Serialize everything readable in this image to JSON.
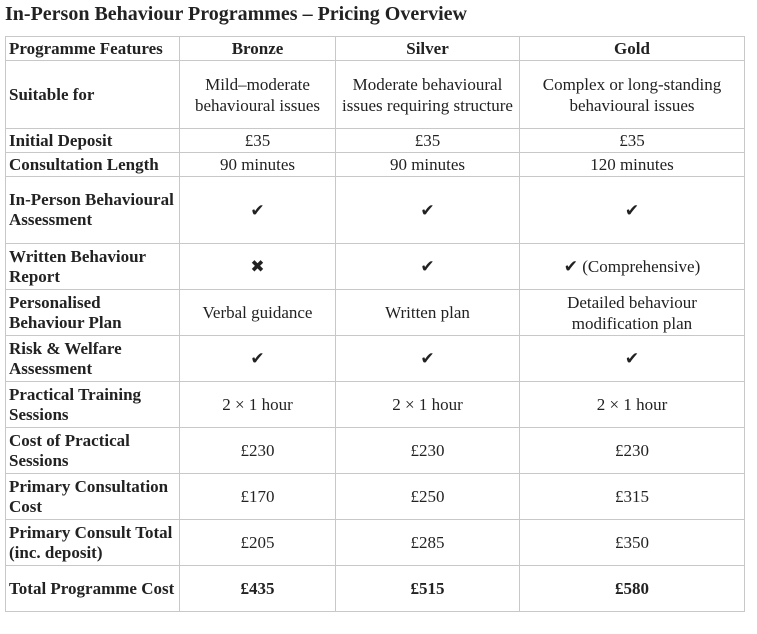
{
  "header": {
    "title": "In-Person Behaviour Programmes – Pricing Overview"
  },
  "table": {
    "columns": [
      "Programme Features",
      "Bronze",
      "Silver",
      "Gold"
    ],
    "rows": [
      [
        "Suitable for",
        "Mild–moderate behavioural issues",
        "Moderate behavioural issues requiring structure",
        "Complex or long-standing behavioural issues"
      ],
      [
        "Initial Deposit",
        "£35",
        "£35",
        "£35"
      ],
      [
        "Consultation Length",
        "90 minutes",
        "90 minutes",
        "120 minutes"
      ],
      [
        "In-Person Behavioural Assessment",
        "✔",
        "✔",
        "✔"
      ],
      [
        "Written Behaviour Report",
        "✖",
        "✔",
        "✔ (Comprehensive)"
      ],
      [
        "Personalised Behaviour Plan",
        "Verbal guidance",
        "Written plan",
        "Detailed behaviour modification plan"
      ],
      [
        "Risk & Welfare Assessment",
        "✔",
        "✔",
        "✔"
      ],
      [
        "Practical Training Sessions",
        "2 × 1 hour",
        "2 × 1 hour",
        "2 × 1 hour"
      ],
      [
        "Cost of Practical Sessions",
        "£230",
        "£230",
        "£230"
      ],
      [
        "Primary Consultation Cost",
        "£170",
        "£250",
        "£315"
      ],
      [
        "Primary Consult Total (inc. deposit)",
        "£205",
        "£285",
        "£350"
      ],
      [
        "Total Programme Cost",
        "£435",
        "£515",
        "£580"
      ]
    ]
  }
}
